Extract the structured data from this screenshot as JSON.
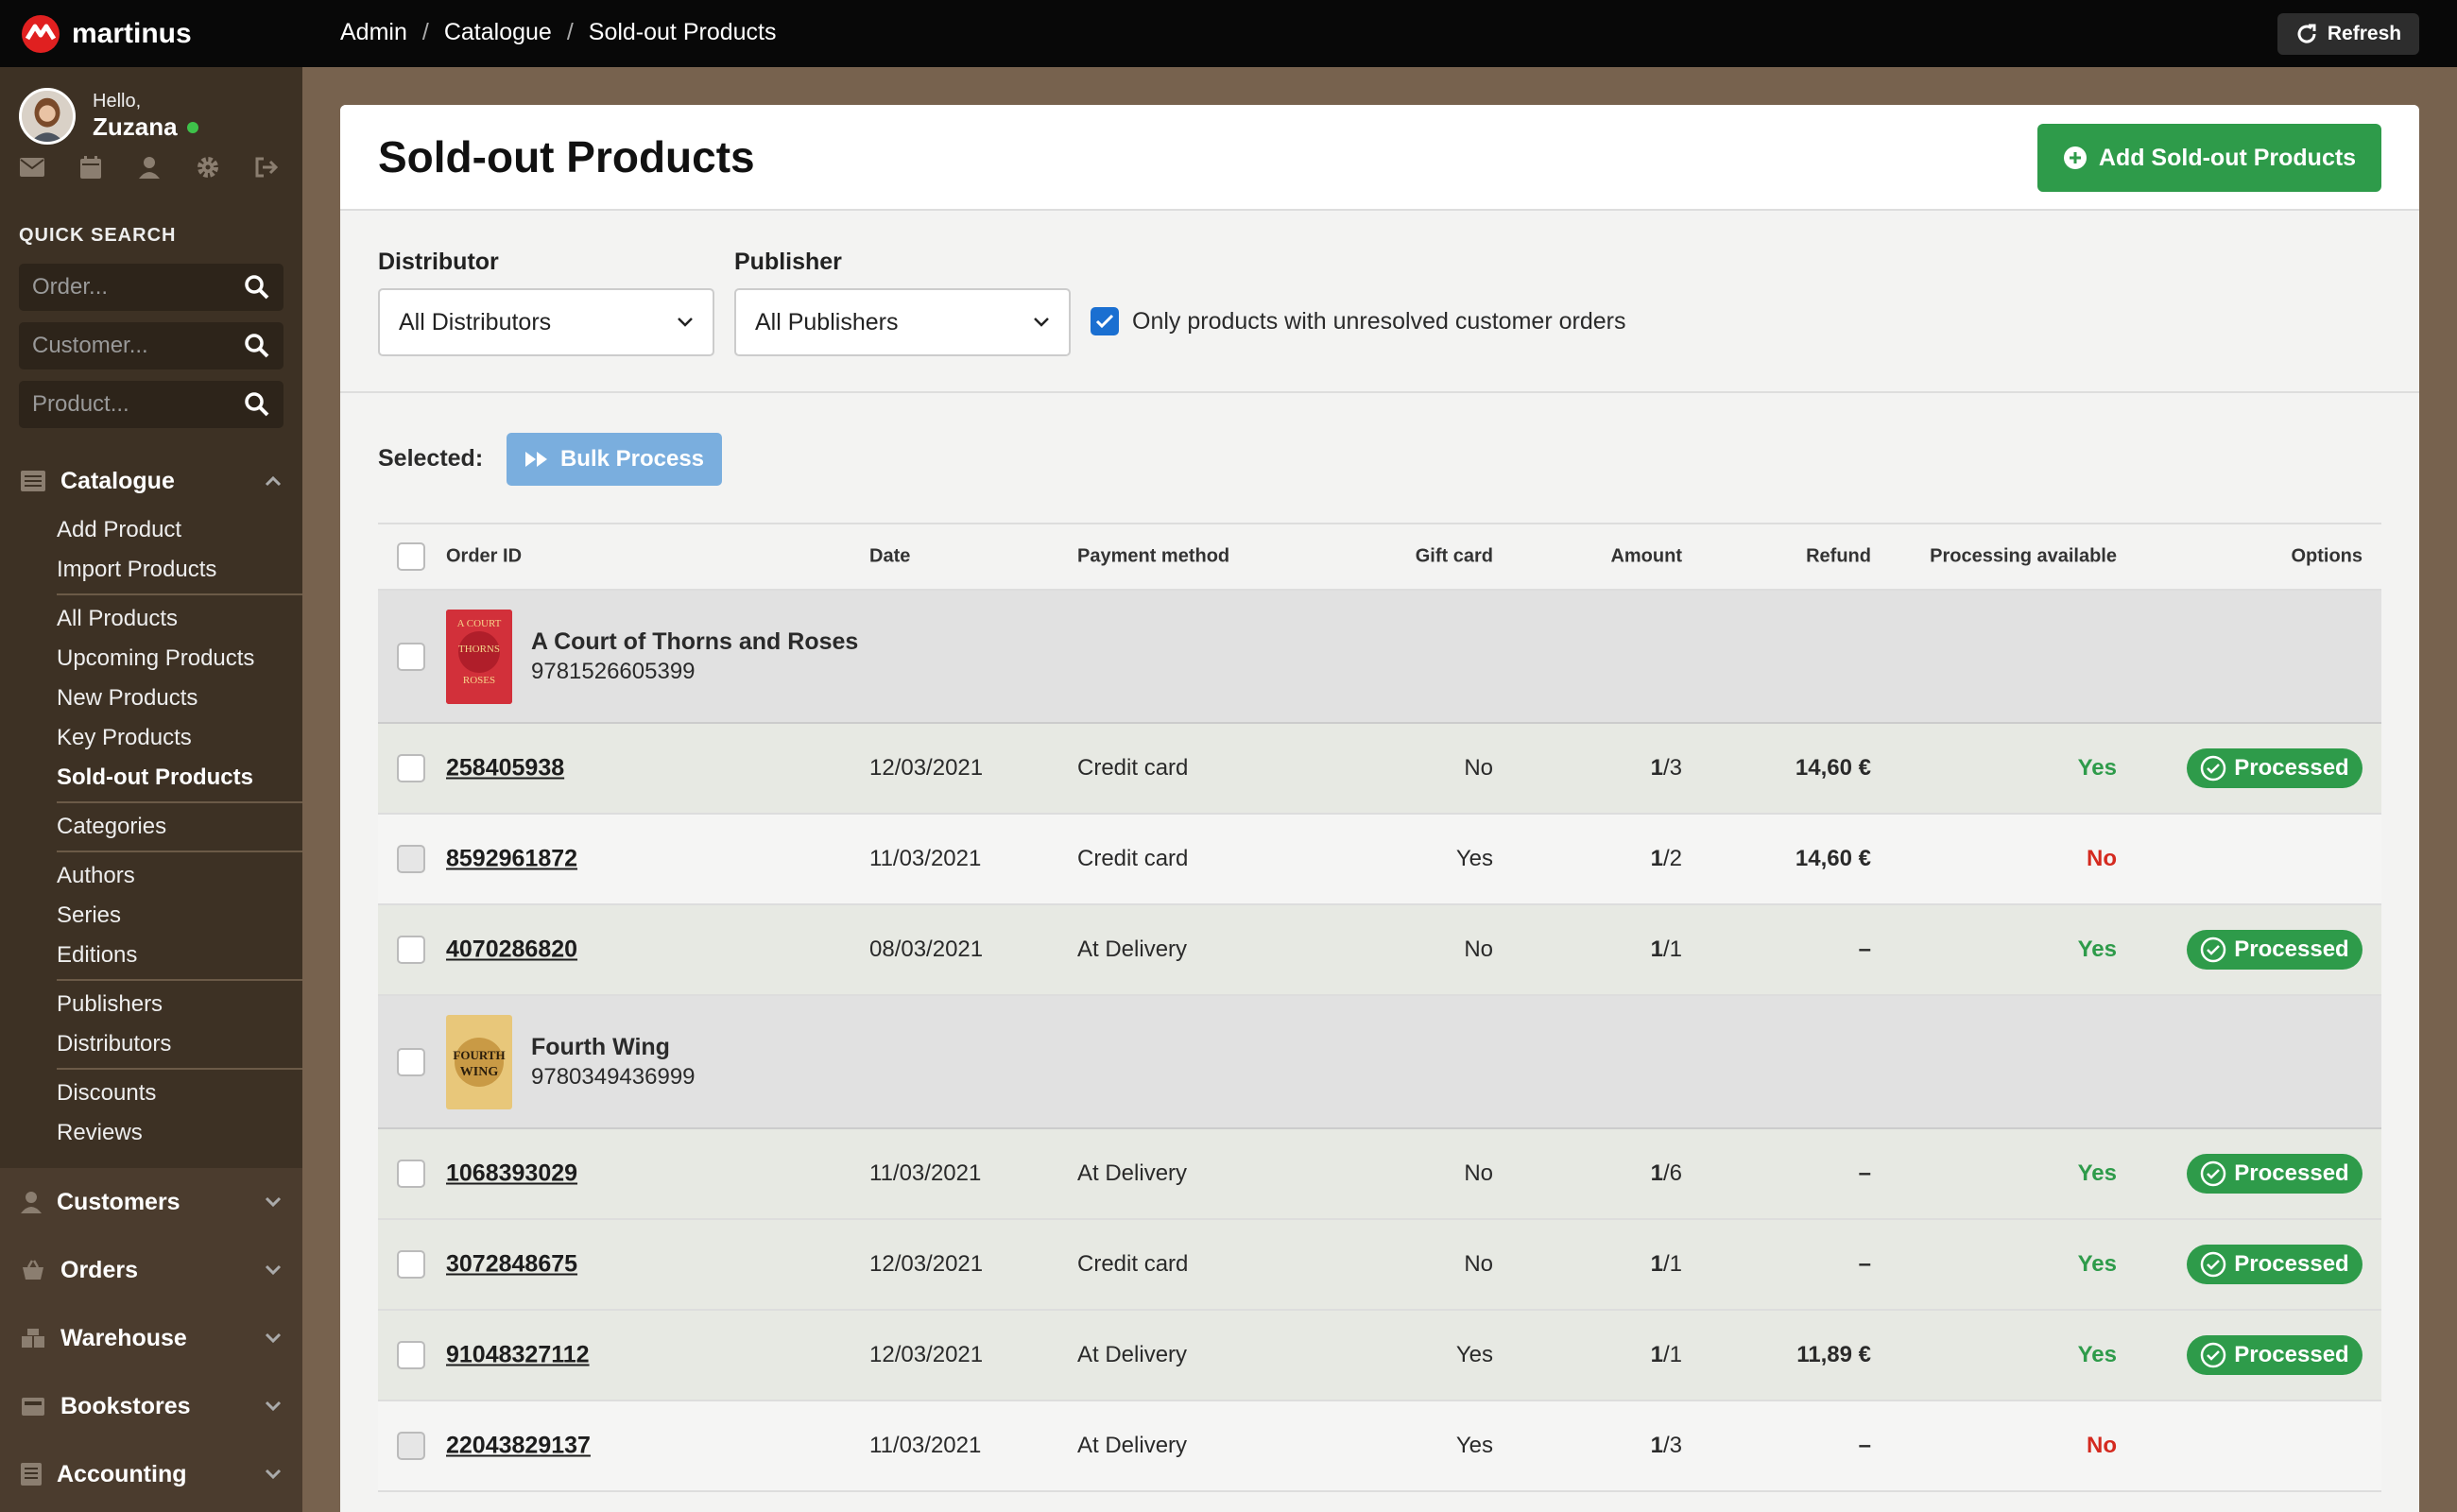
{
  "brand": {
    "name": "martinus",
    "color": "#e02020"
  },
  "breadcrumb": [
    "Admin",
    "Catalogue",
    "Sold-out Products"
  ],
  "topbar": {
    "refresh_label": "Refresh"
  },
  "user": {
    "greeting": "Hello,",
    "name": "Zuzana",
    "status": "online"
  },
  "user_icons": [
    "mail-icon",
    "calendar-icon",
    "user-icon",
    "gear-icon",
    "logout-icon"
  ],
  "quick_search": {
    "title": "QUICK SEARCH",
    "order_placeholder": "Order...",
    "customer_placeholder": "Customer...",
    "product_placeholder": "Product..."
  },
  "nav": {
    "catalogue": {
      "label": "Catalogue",
      "items": [
        "Add Product",
        "Import Products",
        "All Products",
        "Upcoming Products",
        "New Products",
        "Key Products",
        "Sold-out Products",
        "Categories",
        "Authors",
        "Series",
        "Editions",
        "Publishers",
        "Distributors",
        "Discounts",
        "Reviews"
      ],
      "active": "Sold-out Products"
    },
    "sections": [
      "Customers",
      "Orders",
      "Warehouse",
      "Bookstores",
      "Accounting"
    ]
  },
  "page": {
    "title": "Sold-out Products",
    "add_button": "Add Sold-out Products"
  },
  "filters": {
    "distributor_label": "Distributor",
    "distributor_value": "All Distributors",
    "publisher_label": "Publisher",
    "publisher_value": "All Publishers",
    "unresolved_label": "Only products with unresolved customer orders",
    "unresolved_checked": true
  },
  "bulk": {
    "selected_label": "Selected:",
    "button": "Bulk Process"
  },
  "table": {
    "headers": [
      "Order ID",
      "Date",
      "Payment method",
      "Gift card",
      "Amount",
      "Refund",
      "Processing available",
      "Options"
    ],
    "processed_label": "Processed",
    "products": [
      {
        "title": "A Court of Thorns and Roses",
        "isbn": "9781526605399",
        "cover_text": "A COURT OF THORNS AND ROSES",
        "orders": [
          {
            "id": "258405938",
            "date": "12/03/2021",
            "payment": "Credit card",
            "gift": "No",
            "amount_num": "1",
            "amount_den": "/3",
            "refund": "14,60 €",
            "available": "Yes",
            "processed": true
          },
          {
            "id": "8592961872",
            "date": "11/03/2021",
            "payment": "Credit card",
            "gift": "Yes",
            "amount_num": "1",
            "amount_den": "/2",
            "refund": "14,60 €",
            "available": "No",
            "processed": false
          },
          {
            "id": "4070286820",
            "date": "08/03/2021",
            "payment": "At Delivery",
            "gift": "No",
            "amount_num": "1",
            "amount_den": "/1",
            "refund": "–",
            "available": "Yes",
            "processed": true
          }
        ]
      },
      {
        "title": "Fourth Wing",
        "isbn": "9780349436999",
        "cover_text": "FOURTH WING",
        "orders": [
          {
            "id": "1068393029",
            "date": "11/03/2021",
            "payment": "At Delivery",
            "gift": "No",
            "amount_num": "1",
            "amount_den": "/6",
            "refund": "–",
            "available": "Yes",
            "processed": true
          },
          {
            "id": "3072848675",
            "date": "12/03/2021",
            "payment": "Credit card",
            "gift": "No",
            "amount_num": "1",
            "amount_den": "/1",
            "refund": "–",
            "available": "Yes",
            "processed": true
          },
          {
            "id": "91048327112",
            "date": "12/03/2021",
            "payment": "At Delivery",
            "gift": "Yes",
            "amount_num": "1",
            "amount_den": "/1",
            "refund": "11,89 €",
            "available": "Yes",
            "processed": true
          },
          {
            "id": "22043829137",
            "date": "11/03/2021",
            "payment": "At Delivery",
            "gift": "Yes",
            "amount_num": "1",
            "amount_den": "/3",
            "refund": "–",
            "available": "No",
            "processed": false
          }
        ]
      }
    ]
  },
  "colors": {
    "topbar": "#080808",
    "sidebar": "#3d3124",
    "accent_green": "#2e9b4a",
    "danger_red": "#d42a1f",
    "checkbox_blue": "#1a6fd1",
    "bulk_blue": "#7aaede"
  }
}
